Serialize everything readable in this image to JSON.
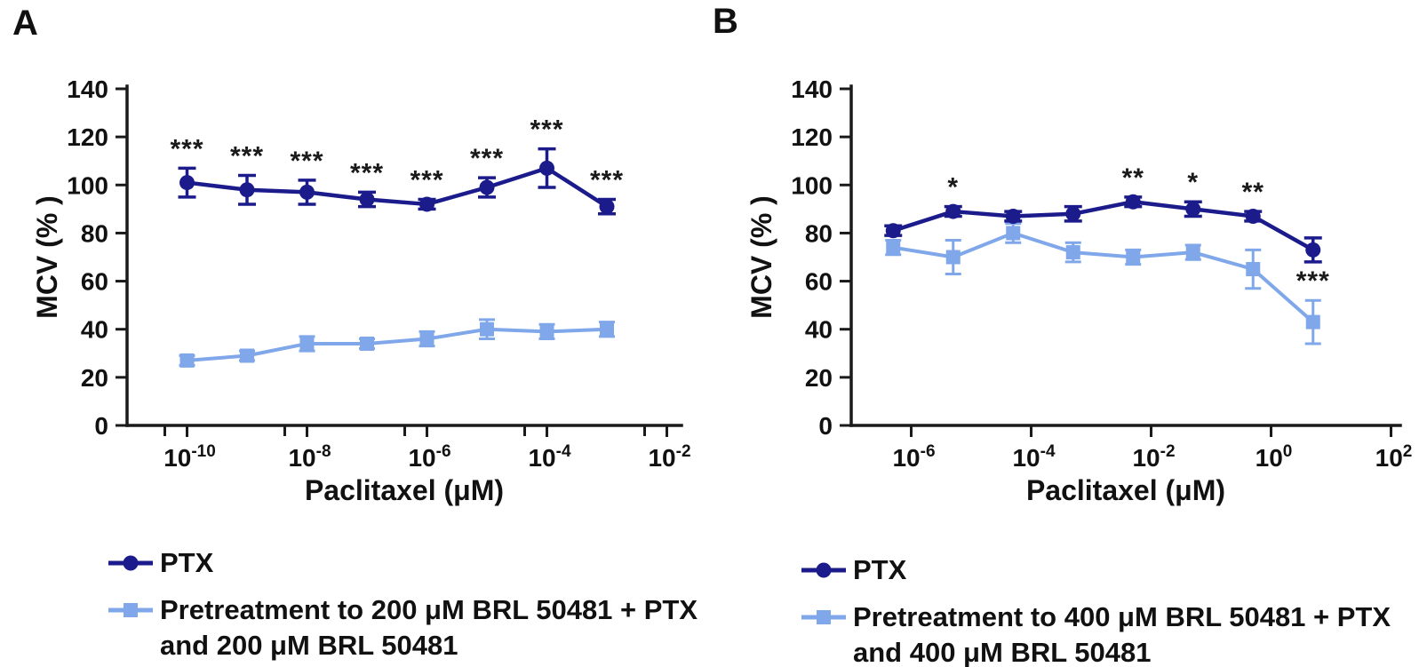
{
  "figure": {
    "panel_labels": [
      "A",
      "B"
    ],
    "background": "#FFFFFF"
  },
  "colors": {
    "ptx": "#1B1B8C",
    "pretreatment": "#7FA7E9",
    "axis": "#1A1A1A",
    "text": "#111111",
    "significance": "#1A1A1A"
  },
  "chart_data": [
    {
      "panel": "A",
      "type": "line",
      "title": "",
      "xlabel": "Paclitaxel (μM)",
      "ylabel": "MCV (% )",
      "x_scale": "log10",
      "ylim": [
        0,
        140
      ],
      "y_ticks": [
        0,
        20,
        40,
        60,
        80,
        100,
        120,
        140
      ],
      "x_major_ticks": [
        {
          "log": -10,
          "base": "10",
          "exp": "-10"
        },
        {
          "log": -8,
          "base": "10",
          "exp": "-8"
        },
        {
          "log": -6,
          "base": "10",
          "exp": "-6"
        },
        {
          "log": -4,
          "base": "10",
          "exp": "-4"
        },
        {
          "log": -2,
          "base": "10",
          "exp": "-2"
        }
      ],
      "minor_tick_pairs": true,
      "grid": false,
      "series": [
        {
          "name": "PTX",
          "marker": "circle",
          "color": "#1B1B8C",
          "x_uM": [
            1e-10,
            1e-09,
            1e-08,
            1e-07,
            1e-06,
            1e-05,
            0.0001,
            0.001
          ],
          "x_log": [
            -10,
            -9,
            -8,
            -7,
            -6,
            -5,
            -4,
            -3
          ],
          "y": [
            101,
            98,
            97,
            94,
            92,
            99,
            107,
            91
          ],
          "err": [
            6,
            6,
            5,
            3,
            2,
            4,
            8,
            3
          ],
          "sig": [
            "***",
            "***",
            "***",
            "***",
            "***",
            "***",
            "***",
            "***"
          ]
        },
        {
          "name": "Pretreatment to 200 μM BRL 50481 + PTX and 200 μM BRL 50481",
          "marker": "square",
          "color": "#7FA7E9",
          "x_uM": [
            1e-10,
            1e-09,
            1e-08,
            1e-07,
            1e-06,
            1e-05,
            0.0001,
            0.001
          ],
          "x_log": [
            -10,
            -9,
            -8,
            -7,
            -6,
            -5,
            -4,
            -3
          ],
          "y": [
            27,
            29,
            34,
            34,
            36,
            40,
            39,
            40
          ],
          "err": [
            2,
            2,
            3,
            2,
            3,
            4,
            3,
            3
          ],
          "sig": [
            "",
            "",
            "",
            "",
            "",
            "",
            "",
            ""
          ]
        }
      ]
    },
    {
      "panel": "B",
      "type": "line",
      "title": "",
      "xlabel": "Paclitaxel (μM)",
      "ylabel": "MCV (% )",
      "x_scale": "log10",
      "ylim": [
        0,
        140
      ],
      "y_ticks": [
        0,
        20,
        40,
        60,
        80,
        100,
        120,
        140
      ],
      "x_major_ticks": [
        {
          "log": -6,
          "base": "10",
          "exp": "-6"
        },
        {
          "log": -4,
          "base": "10",
          "exp": "-4"
        },
        {
          "log": -2,
          "base": "10",
          "exp": "-2"
        },
        {
          "log": 0,
          "base": "10",
          "exp": "0"
        },
        {
          "log": 2,
          "base": "10",
          "exp": "2"
        }
      ],
      "minor_tick_pairs": false,
      "grid": false,
      "series": [
        {
          "name": "PTX",
          "marker": "circle",
          "color": "#1B1B8C",
          "x_uM": [
            5e-07,
            5e-06,
            5e-05,
            0.0005,
            0.005,
            0.05,
            0.5,
            5
          ],
          "x_log": [
            -6.3,
            -5.3,
            -4.3,
            -3.3,
            -2.3,
            -1.3,
            -0.3,
            0.7
          ],
          "y": [
            81,
            89,
            87,
            88,
            93,
            90,
            87,
            73
          ],
          "err": [
            2,
            2,
            2,
            3,
            2,
            3,
            2,
            5
          ],
          "sig": [
            "",
            "*",
            "",
            "",
            "**",
            "*",
            "**",
            ""
          ]
        },
        {
          "name": "Pretreatment to 400 μM BRL 50481 + PTX and 400 μM BRL 50481",
          "marker": "square",
          "color": "#7FA7E9",
          "x_uM": [
            5e-07,
            5e-06,
            5e-05,
            0.0005,
            0.005,
            0.05,
            0.5,
            5
          ],
          "x_log": [
            -6.3,
            -5.3,
            -4.3,
            -3.3,
            -2.3,
            -1.3,
            -0.3,
            0.7
          ],
          "y": [
            74,
            70,
            80,
            72,
            70,
            72,
            65,
            43
          ],
          "err": [
            3,
            7,
            4,
            4,
            3,
            3,
            8,
            9
          ],
          "sig": [
            "",
            "",
            "",
            "",
            "",
            "",
            "",
            "***"
          ]
        }
      ]
    }
  ],
  "legends": [
    {
      "entries": [
        {
          "marker": "circle",
          "color": "#1B1B8C",
          "lines": [
            "PTX"
          ]
        },
        {
          "marker": "square",
          "color": "#7FA7E9",
          "lines": [
            "Pretreatment to 200 μM BRL 50481 + PTX",
            "and 200 μM BRL 50481"
          ]
        }
      ]
    },
    {
      "entries": [
        {
          "marker": "circle",
          "color": "#1B1B8C",
          "lines": [
            "PTX"
          ]
        },
        {
          "marker": "square",
          "color": "#7FA7E9",
          "lines": [
            "Pretreatment to 400 μM BRL 50481 + PTX",
            "and 400 μM BRL 50481"
          ]
        }
      ]
    }
  ]
}
